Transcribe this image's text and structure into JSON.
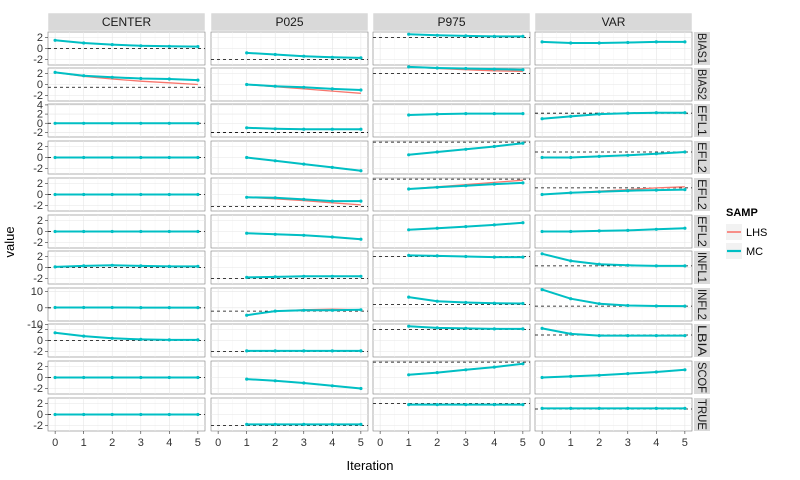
{
  "chart_data": {
    "type": "line",
    "xlabel": "Iteration",
    "ylabel": "value",
    "columns": [
      "CENTER",
      "P025",
      "P975",
      "VAR"
    ],
    "rows": [
      "BIAS1",
      "BIAS2",
      "EFL1",
      "EFL2",
      "EFL2",
      "EFL2",
      "INFL1",
      "INFL2",
      "LBIA",
      "SCOF",
      "TRUE"
    ],
    "x_ticks": [
      0,
      1,
      2,
      3,
      4,
      5
    ],
    "row_y_ticks": [
      [
        -2,
        0,
        2
      ],
      [
        -2,
        0,
        2
      ],
      [
        -2,
        0,
        2,
        4
      ],
      [
        -2,
        0,
        2
      ],
      [
        -2,
        0,
        2
      ],
      [
        -2,
        0,
        2
      ],
      [
        -2,
        0,
        2
      ],
      [
        -10,
        0,
        10
      ],
      [
        -2,
        0,
        2
      ],
      [
        -2,
        0,
        2
      ],
      [
        -2,
        0,
        2
      ]
    ],
    "row_ylim": [
      [
        -3,
        3
      ],
      [
        -3,
        3
      ],
      [
        -3,
        4.2
      ],
      [
        -3,
        3
      ],
      [
        -3,
        3
      ],
      [
        -3,
        3
      ],
      [
        -3,
        3
      ],
      [
        -8,
        12
      ],
      [
        -3,
        3
      ],
      [
        -3,
        3
      ],
      [
        -3,
        3
      ]
    ],
    "xlim": [
      -0.25,
      5.25
    ],
    "grid": true,
    "legend": {
      "title": "SAMP",
      "position": "right",
      "entries": [
        {
          "label": "LHS",
          "color": "#F8766D"
        },
        {
          "label": "MC",
          "color": "#00BFC4"
        }
      ]
    },
    "panels": [
      {
        "row": 0,
        "col": 0,
        "ref": 0,
        "x": [
          0,
          1,
          2,
          3,
          4,
          5
        ],
        "MC": [
          1.5,
          1.0,
          0.7,
          0.5,
          0.4,
          0.35
        ],
        "LHS": [
          1.5,
          1.0,
          0.7,
          0.5,
          0.4,
          0.35
        ]
      },
      {
        "row": 0,
        "col": 1,
        "ref": -2,
        "x": [
          1,
          2,
          3,
          4,
          5
        ],
        "MC": [
          -0.8,
          -1.1,
          -1.4,
          -1.6,
          -1.7
        ],
        "LHS": [
          -0.8,
          -1.1,
          -1.4,
          -1.6,
          -1.7
        ]
      },
      {
        "row": 0,
        "col": 2,
        "ref": 2,
        "x": [
          1,
          2,
          3,
          4,
          5
        ],
        "MC": [
          2.6,
          2.4,
          2.3,
          2.2,
          2.2
        ],
        "LHS": [
          2.6,
          2.4,
          2.3,
          2.2,
          2.2
        ]
      },
      {
        "row": 0,
        "col": 3,
        "ref": null,
        "x": [
          0,
          1,
          2,
          3,
          4,
          5
        ],
        "MC": [
          1.2,
          1.0,
          1.0,
          1.1,
          1.2,
          1.2
        ],
        "LHS": [
          1.2,
          1.0,
          1.0,
          1.1,
          1.2,
          1.2
        ]
      },
      {
        "row": 1,
        "col": 0,
        "ref": -0.5,
        "x": [
          0,
          1,
          2,
          3,
          4,
          5
        ],
        "MC": [
          2.2,
          1.6,
          1.3,
          1.1,
          1.0,
          0.8
        ],
        "LHS": [
          2.2,
          1.5,
          1.0,
          0.6,
          0.3,
          0.0
        ]
      },
      {
        "row": 1,
        "col": 1,
        "ref": null,
        "x": [
          1,
          2,
          3,
          4,
          5
        ],
        "MC": [
          0.0,
          -0.3,
          -0.5,
          -0.8,
          -1.0
        ],
        "LHS": [
          0.0,
          -0.4,
          -0.8,
          -1.2,
          -1.6
        ]
      },
      {
        "row": 1,
        "col": 2,
        "ref": 2,
        "x": [
          1,
          2,
          3,
          4,
          5
        ],
        "MC": [
          3.2,
          3.0,
          2.9,
          2.8,
          2.7
        ],
        "LHS": [
          3.2,
          2.9,
          2.7,
          2.5,
          2.4
        ]
      },
      {
        "row": 1,
        "col": 3,
        "ref": null,
        "x": [
          0,
          1,
          2,
          3,
          4,
          5
        ],
        "MC": [],
        "LHS": []
      },
      {
        "row": 2,
        "col": 0,
        "ref": 0,
        "x": [
          0,
          1,
          2,
          3,
          4,
          5
        ],
        "MC": [
          0,
          0,
          0,
          0,
          0,
          0
        ],
        "LHS": [
          0,
          0,
          0,
          0,
          0,
          0
        ]
      },
      {
        "row": 2,
        "col": 1,
        "ref": -2,
        "x": [
          1,
          2,
          3,
          4,
          5
        ],
        "MC": [
          -1.0,
          -1.2,
          -1.3,
          -1.3,
          -1.3
        ],
        "LHS": [
          -1.0,
          -1.2,
          -1.3,
          -1.3,
          -1.3
        ]
      },
      {
        "row": 2,
        "col": 2,
        "ref": null,
        "x": [
          1,
          2,
          3,
          4,
          5
        ],
        "MC": [
          1.8,
          2.0,
          2.1,
          2.1,
          2.1
        ],
        "LHS": [
          1.8,
          2.0,
          2.1,
          2.1,
          2.1
        ]
      },
      {
        "row": 2,
        "col": 3,
        "ref": 2.2,
        "x": [
          0,
          1,
          2,
          3,
          4,
          5
        ],
        "MC": [
          1.0,
          1.5,
          2.0,
          2.2,
          2.3,
          2.3
        ],
        "LHS": [
          1.0,
          1.5,
          2.0,
          2.2,
          2.3,
          2.3
        ]
      },
      {
        "row": 3,
        "col": 0,
        "ref": 0,
        "x": [
          0,
          1,
          2,
          3,
          4,
          5
        ],
        "MC": [
          0,
          0,
          0,
          0,
          0,
          0
        ],
        "LHS": [
          0,
          0,
          0,
          0,
          0,
          0
        ]
      },
      {
        "row": 3,
        "col": 1,
        "ref": null,
        "x": [
          1,
          2,
          3,
          4,
          5
        ],
        "MC": [
          0.0,
          -0.6,
          -1.2,
          -1.8,
          -2.4
        ],
        "LHS": [
          0.0,
          -0.6,
          -1.2,
          -1.8,
          -2.4
        ]
      },
      {
        "row": 3,
        "col": 2,
        "ref": 2.8,
        "x": [
          1,
          2,
          3,
          4,
          5
        ],
        "MC": [
          0.5,
          1.0,
          1.5,
          2.0,
          2.6
        ],
        "LHS": [
          0.5,
          1.0,
          1.5,
          2.0,
          2.6
        ]
      },
      {
        "row": 3,
        "col": 3,
        "ref": 1,
        "x": [
          0,
          1,
          2,
          3,
          4,
          5
        ],
        "MC": [
          0.0,
          0.0,
          0.2,
          0.4,
          0.7,
          1.0
        ],
        "LHS": [
          0.0,
          0.0,
          0.2,
          0.4,
          0.7,
          1.0
        ]
      },
      {
        "row": 4,
        "col": 0,
        "ref": 0,
        "x": [
          0,
          1,
          2,
          3,
          4,
          5
        ],
        "MC": [
          0,
          0,
          0,
          0,
          0,
          0
        ],
        "LHS": [
          0,
          0,
          0,
          0,
          0,
          0
        ]
      },
      {
        "row": 4,
        "col": 1,
        "ref": -2.2,
        "x": [
          1,
          2,
          3,
          4,
          5
        ],
        "MC": [
          -0.5,
          -0.6,
          -0.9,
          -1.2,
          -1.2
        ],
        "LHS": [
          -0.5,
          -0.8,
          -1.1,
          -1.5,
          -1.9
        ]
      },
      {
        "row": 4,
        "col": 2,
        "ref": 2.8,
        "x": [
          1,
          2,
          3,
          4,
          5
        ],
        "MC": [
          1.0,
          1.3,
          1.6,
          1.9,
          2.1
        ],
        "LHS": [
          1.0,
          1.4,
          1.8,
          2.2,
          2.6
        ]
      },
      {
        "row": 4,
        "col": 3,
        "ref": 1.2,
        "x": [
          0,
          1,
          2,
          3,
          4,
          5
        ],
        "MC": [
          0.0,
          0.3,
          0.5,
          0.7,
          0.8,
          0.9
        ],
        "LHS": [
          0.0,
          0.3,
          0.6,
          0.9,
          1.2,
          1.4
        ]
      },
      {
        "row": 5,
        "col": 0,
        "ref": 0,
        "x": [
          0,
          1,
          2,
          3,
          4,
          5
        ],
        "MC": [
          0,
          0,
          0,
          0,
          0,
          0
        ],
        "LHS": [
          0,
          0,
          0,
          0,
          0,
          0
        ]
      },
      {
        "row": 5,
        "col": 1,
        "ref": null,
        "x": [
          1,
          2,
          3,
          4,
          5
        ],
        "MC": [
          -0.3,
          -0.5,
          -0.7,
          -1.0,
          -1.4
        ],
        "LHS": [
          -0.3,
          -0.5,
          -0.7,
          -1.0,
          -1.4
        ]
      },
      {
        "row": 5,
        "col": 2,
        "ref": null,
        "x": [
          1,
          2,
          3,
          4,
          5
        ],
        "MC": [
          0.3,
          0.6,
          0.9,
          1.2,
          1.6
        ],
        "LHS": [
          0.3,
          0.6,
          0.9,
          1.2,
          1.6
        ]
      },
      {
        "row": 5,
        "col": 3,
        "ref": null,
        "x": [
          0,
          1,
          2,
          3,
          4,
          5
        ],
        "MC": [
          0.0,
          0.0,
          0.1,
          0.2,
          0.4,
          0.6
        ],
        "LHS": [
          0.0,
          0.0,
          0.1,
          0.2,
          0.4,
          0.6
        ]
      },
      {
        "row": 6,
        "col": 0,
        "ref": 0,
        "x": [
          0,
          1,
          2,
          3,
          4,
          5
        ],
        "MC": [
          0.1,
          0.3,
          0.4,
          0.3,
          0.2,
          0.2
        ],
        "LHS": [
          0.1,
          0.3,
          0.4,
          0.3,
          0.2,
          0.2
        ]
      },
      {
        "row": 6,
        "col": 1,
        "ref": -2,
        "x": [
          1,
          2,
          3,
          4,
          5
        ],
        "MC": [
          -1.8,
          -1.7,
          -1.6,
          -1.6,
          -1.6
        ],
        "LHS": [
          -1.8,
          -1.7,
          -1.6,
          -1.6,
          -1.6
        ]
      },
      {
        "row": 6,
        "col": 2,
        "ref": 2,
        "x": [
          1,
          2,
          3,
          4,
          5
        ],
        "MC": [
          2.2,
          2.1,
          2.0,
          1.9,
          1.9
        ],
        "LHS": [
          2.2,
          2.1,
          2.0,
          1.9,
          1.9
        ]
      },
      {
        "row": 6,
        "col": 3,
        "ref": 0.3,
        "x": [
          0,
          1,
          2,
          3,
          4,
          5
        ],
        "MC": [
          2.5,
          1.2,
          0.6,
          0.4,
          0.3,
          0.3
        ],
        "LHS": [
          2.5,
          1.2,
          0.6,
          0.4,
          0.3,
          0.3
        ]
      },
      {
        "row": 7,
        "col": 0,
        "ref": 0,
        "x": [
          0,
          1,
          2,
          3,
          4,
          5
        ],
        "MC": [
          0.2,
          0.2,
          0.2,
          0.1,
          0.1,
          0.1
        ],
        "LHS": [
          0.2,
          0.2,
          0.2,
          0.1,
          0.1,
          0.1
        ]
      },
      {
        "row": 7,
        "col": 1,
        "ref": -2,
        "x": [
          1,
          2,
          3,
          4,
          5
        ],
        "MC": [
          -4.5,
          -2.0,
          -1.5,
          -1.5,
          -1.2
        ],
        "LHS": [
          -4.5,
          -2.0,
          -1.2,
          -0.8,
          -1.2
        ]
      },
      {
        "row": 7,
        "col": 2,
        "ref": 2,
        "x": [
          1,
          2,
          3,
          4,
          5
        ],
        "MC": [
          6.5,
          4.0,
          3.2,
          2.8,
          2.6
        ],
        "LHS": [
          6.5,
          4.0,
          3.2,
          2.8,
          2.6
        ]
      },
      {
        "row": 7,
        "col": 3,
        "ref": 1,
        "x": [
          0,
          1,
          2,
          3,
          4,
          5
        ],
        "MC": [
          11.0,
          5.5,
          2.5,
          1.4,
          1.1,
          1.0
        ],
        "LHS": [
          11.0,
          5.5,
          2.5,
          1.4,
          1.1,
          1.0
        ]
      },
      {
        "row": 8,
        "col": 0,
        "ref": 0,
        "x": [
          0,
          1,
          2,
          3,
          4,
          5
        ],
        "MC": [
          1.4,
          0.8,
          0.4,
          0.2,
          0.1,
          0.1
        ],
        "LHS": [
          1.4,
          0.8,
          0.4,
          0.2,
          0.1,
          0.1
        ]
      },
      {
        "row": 8,
        "col": 1,
        "ref": -2,
        "x": [
          1,
          2,
          3,
          4,
          5
        ],
        "MC": [
          -1.9,
          -1.9,
          -1.9,
          -1.9,
          -1.9
        ],
        "LHS": [
          -1.9,
          -1.9,
          -1.9,
          -1.9,
          -1.9
        ]
      },
      {
        "row": 8,
        "col": 2,
        "ref": 2,
        "x": [
          1,
          2,
          3,
          4,
          5
        ],
        "MC": [
          2.6,
          2.3,
          2.2,
          2.1,
          2.1
        ],
        "LHS": [
          2.6,
          2.3,
          2.2,
          2.1,
          2.1
        ]
      },
      {
        "row": 8,
        "col": 3,
        "ref": 1,
        "x": [
          0,
          1,
          2,
          3,
          4,
          5
        ],
        "MC": [
          2.2,
          1.2,
          0.9,
          0.9,
          0.9,
          0.9
        ],
        "LHS": [
          2.2,
          1.2,
          0.9,
          0.9,
          0.9,
          0.9
        ]
      },
      {
        "row": 9,
        "col": 0,
        "ref": 0,
        "x": [
          0,
          1,
          2,
          3,
          4,
          5
        ],
        "MC": [
          0,
          0,
          0,
          0,
          0,
          0
        ],
        "LHS": [
          0,
          0,
          0,
          0,
          0,
          0
        ]
      },
      {
        "row": 9,
        "col": 1,
        "ref": null,
        "x": [
          1,
          2,
          3,
          4,
          5
        ],
        "MC": [
          -0.3,
          -0.6,
          -1.0,
          -1.5,
          -2.0
        ],
        "LHS": [
          -0.3,
          -0.6,
          -1.0,
          -1.5,
          -2.0
        ]
      },
      {
        "row": 9,
        "col": 2,
        "ref": 2.8,
        "x": [
          1,
          2,
          3,
          4,
          5
        ],
        "MC": [
          0.5,
          0.9,
          1.4,
          1.9,
          2.5
        ],
        "LHS": [
          0.5,
          0.9,
          1.4,
          1.9,
          2.5
        ]
      },
      {
        "row": 9,
        "col": 3,
        "ref": null,
        "x": [
          0,
          1,
          2,
          3,
          4,
          5
        ],
        "MC": [
          0.0,
          0.2,
          0.4,
          0.7,
          1.0,
          1.4
        ],
        "LHS": [
          0.0,
          0.2,
          0.4,
          0.7,
          1.0,
          1.4
        ]
      },
      {
        "row": 10,
        "col": 0,
        "ref": 0,
        "x": [
          0,
          1,
          2,
          3,
          4,
          5
        ],
        "MC": [
          0,
          0,
          0,
          0,
          0,
          0
        ],
        "LHS": [
          0,
          0,
          0,
          0,
          0,
          0
        ]
      },
      {
        "row": 10,
        "col": 1,
        "ref": -2,
        "x": [
          1,
          2,
          3,
          4,
          5
        ],
        "MC": [
          -1.8,
          -1.8,
          -1.8,
          -1.8,
          -1.8
        ],
        "LHS": [
          -1.8,
          -1.8,
          -1.8,
          -1.8,
          -1.8
        ]
      },
      {
        "row": 10,
        "col": 2,
        "ref": 2,
        "x": [
          1,
          2,
          3,
          4,
          5
        ],
        "MC": [
          1.8,
          1.8,
          1.8,
          1.8,
          1.8
        ],
        "LHS": [
          1.8,
          1.8,
          1.8,
          1.8,
          1.8
        ]
      },
      {
        "row": 10,
        "col": 3,
        "ref": 1,
        "x": [
          0,
          1,
          2,
          3,
          4,
          5
        ],
        "MC": [
          1.1,
          1.1,
          1.1,
          1.1,
          1.1,
          1.1
        ],
        "LHS": [
          1.1,
          1.1,
          1.1,
          1.1,
          1.1,
          1.1
        ]
      }
    ]
  }
}
